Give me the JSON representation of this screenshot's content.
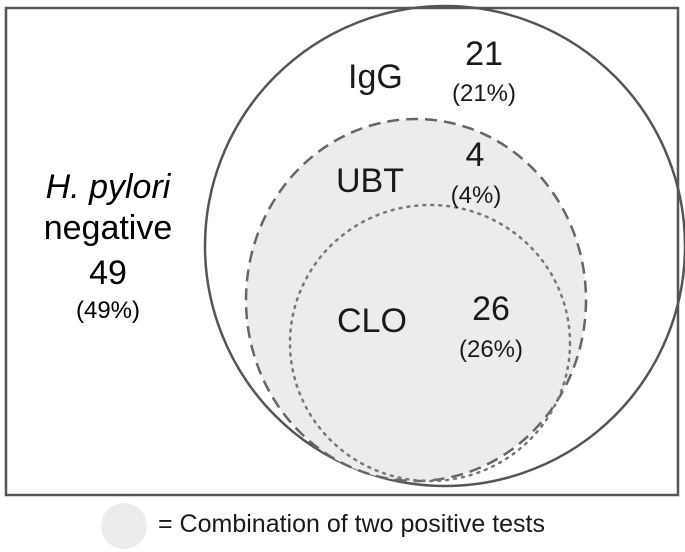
{
  "negative": {
    "name_italic": "H. pylori",
    "name_plain": "negative",
    "count": "49",
    "percent": "(49%)"
  },
  "sets": {
    "igg": {
      "label": "IgG",
      "count": "21",
      "percent": "(21%)"
    },
    "ubt": {
      "label": "UBT",
      "count": "4",
      "percent": "(4%)"
    },
    "clo": {
      "label": "CLO",
      "count": "26",
      "percent": "(26%)"
    }
  },
  "legend": {
    "text": "= Combination of two positive tests"
  },
  "colors": {
    "border": "#555555",
    "shaded": "#ececec",
    "text": "#1a1a1a"
  }
}
